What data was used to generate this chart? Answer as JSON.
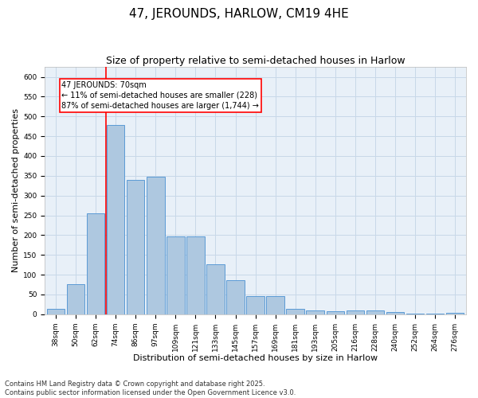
{
  "title": "47, JEROUNDS, HARLOW, CM19 4HE",
  "subtitle": "Size of property relative to semi-detached houses in Harlow",
  "xlabel": "Distribution of semi-detached houses by size in Harlow",
  "ylabel": "Number of semi-detached properties",
  "categories": [
    "38sqm",
    "50sqm",
    "62sqm",
    "74sqm",
    "86sqm",
    "97sqm",
    "109sqm",
    "121sqm",
    "133sqm",
    "145sqm",
    "157sqm",
    "169sqm",
    "181sqm",
    "193sqm",
    "205sqm",
    "216sqm",
    "228sqm",
    "240sqm",
    "252sqm",
    "264sqm",
    "276sqm"
  ],
  "values": [
    13,
    75,
    255,
    478,
    340,
    348,
    197,
    197,
    126,
    85,
    46,
    46,
    14,
    10,
    7,
    9,
    10,
    5,
    2,
    1,
    3
  ],
  "bar_color": "#aec8e0",
  "bar_edge_color": "#5b9bd5",
  "grid_color": "#c8d8e8",
  "background_color": "#e8f0f8",
  "vline_x": 2.5,
  "vline_color": "red",
  "annotation_text": "47 JEROUNDS: 70sqm\n← 11% of semi-detached houses are smaller (228)\n87% of semi-detached houses are larger (1,744) →",
  "annotation_box_color": "red",
  "ylim": [
    0,
    625
  ],
  "yticks": [
    0,
    50,
    100,
    150,
    200,
    250,
    300,
    350,
    400,
    450,
    500,
    550,
    600
  ],
  "footnote": "Contains HM Land Registry data © Crown copyright and database right 2025.\nContains public sector information licensed under the Open Government Licence v3.0.",
  "title_fontsize": 11,
  "subtitle_fontsize": 9,
  "axis_label_fontsize": 8,
  "tick_fontsize": 6.5,
  "footnote_fontsize": 6,
  "annotation_fontsize": 7
}
